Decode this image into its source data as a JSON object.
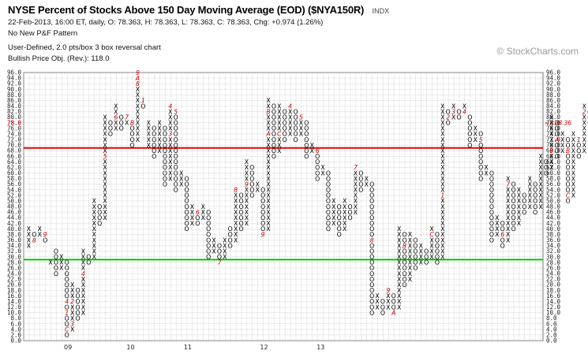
{
  "header": {
    "title": "NYSE Percent of Stocks Above 150 Day Moving Average (EOD) ($NYA150R)",
    "badge": "INDX",
    "quote": "22-Feb-2013, 16:00 ET, daily, O: 78.363, H: 78.363, L: 78.363, C: 78.363, Chg: +0.974 (1.26%)",
    "pattern": "No New P&F Pattern",
    "settings": "User-Defined, 2.0 pts/box 3 box reversal chart",
    "price_objective": "Bullish Price Obj. (Rev.): 118.0"
  },
  "watermark": "© StockCharts.com",
  "chart_data": {
    "type": "point-and-figure",
    "box_size": 2.0,
    "reversal": 3,
    "ylim": [
      0,
      96
    ],
    "grid": true,
    "last_value_label": "<<78.36",
    "last_value_left_label": "78.0",
    "x_tick_labels": [
      {
        "label": "09",
        "col": 7.7
      },
      {
        "label": "10",
        "col": 19.2
      },
      {
        "label": "11",
        "col": 29.7
      },
      {
        "label": "12",
        "col": 43.7
      },
      {
        "label": "13",
        "col": 54.1
      }
    ],
    "columns": [
      {
        "type": "X",
        "low": 34,
        "high": 40,
        "marks": {
          "30": "1"
        }
      },
      {
        "type": "O",
        "low": 36,
        "high": 38,
        "marks": {
          "36": "8"
        }
      },
      {
        "type": "X",
        "low": 38,
        "high": 40
      },
      {
        "type": "O",
        "low": 36,
        "high": 38,
        "marks": {
          "38": "9"
        }
      },
      {
        "type": "X",
        "low": 28,
        "high": 28
      },
      {
        "type": "O",
        "low": 24,
        "high": 32
      },
      {
        "type": "X",
        "low": 26,
        "high": 30
      },
      {
        "type": "O",
        "low": 2,
        "high": 28,
        "marks": {
          "14": "4",
          "10": "1",
          "4": "C"
        }
      },
      {
        "type": "X",
        "low": 4,
        "high": 20,
        "marks": {
          "14": "2",
          "6": "3"
        }
      },
      {
        "type": "O",
        "low": 8,
        "high": 18
      },
      {
        "type": "X",
        "low": 10,
        "high": 32,
        "marks": {
          "24": "4"
        }
      },
      {
        "type": "O",
        "low": 28,
        "high": 30
      },
      {
        "type": "X",
        "low": 30,
        "high": 50
      },
      {
        "type": "O",
        "low": 42,
        "high": 48
      },
      {
        "type": "X",
        "low": 44,
        "high": 80,
        "marks": {
          "66": "5"
        }
      },
      {
        "type": "O",
        "low": 74,
        "high": 78
      },
      {
        "type": "X",
        "low": 76,
        "high": 84,
        "marks": {
          "80": "6"
        }
      },
      {
        "type": "O",
        "low": 76,
        "high": 80
      },
      {
        "type": "X",
        "low": 78,
        "high": 80,
        "marks": {
          "80": "7"
        }
      },
      {
        "type": "O",
        "low": 70,
        "high": 78,
        "marks": {
          "78": "B"
        }
      },
      {
        "type": "X",
        "low": 72,
        "high": 96,
        "marks": {
          "96": "9",
          "94": "A",
          "92": "8"
        }
      },
      {
        "type": "O",
        "low": 84,
        "high": 86,
        "marks": {
          "86": "1"
        }
      },
      {
        "type": "X",
        "low": 70,
        "high": 78
      },
      {
        "type": "O",
        "low": 66,
        "high": 76
      },
      {
        "type": "X",
        "low": 68,
        "high": 78
      },
      {
        "type": "O",
        "low": 56,
        "high": 76
      },
      {
        "type": "X",
        "low": 58,
        "high": 84,
        "marks": {
          "84": "4",
          "74": "3"
        }
      },
      {
        "type": "O",
        "low": 54,
        "high": 82,
        "marks": {
          "82": "5"
        }
      },
      {
        "type": "X",
        "low": 56,
        "high": 60
      },
      {
        "type": "O",
        "low": 40,
        "high": 58
      },
      {
        "type": "X",
        "low": 42,
        "high": 48
      },
      {
        "type": "O",
        "low": 42,
        "high": 46,
        "marks": {
          "46": "6"
        }
      },
      {
        "type": "X",
        "low": 44,
        "high": 48
      },
      {
        "type": "O",
        "low": 30,
        "high": 46
      },
      {
        "type": "X",
        "low": 32,
        "high": 36
      },
      {
        "type": "O",
        "low": 28,
        "high": 34,
        "marks": {
          "28": "7"
        }
      },
      {
        "type": "X",
        "low": 30,
        "high": 36
      },
      {
        "type": "O",
        "low": 34,
        "high": 40
      },
      {
        "type": "X",
        "low": 36,
        "high": 54,
        "marks": {
          "54": "8"
        }
      },
      {
        "type": "O",
        "low": 40,
        "high": 52
      },
      {
        "type": "X",
        "low": 42,
        "high": 64,
        "marks": {
          "56": "9"
        }
      },
      {
        "type": "O",
        "low": 52,
        "high": 62
      },
      {
        "type": "X",
        "low": 54,
        "high": 56
      },
      {
        "type": "O",
        "low": 38,
        "high": 54,
        "marks": {
          "38": "9"
        }
      },
      {
        "type": "X",
        "low": 40,
        "high": 86,
        "marks": {
          "82": "B",
          "74": "A"
        }
      },
      {
        "type": "O",
        "low": 66,
        "high": 84,
        "marks": {
          "86": "1"
        }
      },
      {
        "type": "X",
        "low": 68,
        "high": 84,
        "marks": {
          "74": "C"
        }
      },
      {
        "type": "O",
        "low": 72,
        "high": 82,
        "marks": {
          "84": "3"
        }
      },
      {
        "type": "X",
        "low": 74,
        "high": 84,
        "marks": {
          "84": "4"
        }
      },
      {
        "type": "O",
        "low": 72,
        "high": 82
      },
      {
        "type": "X",
        "low": 74,
        "high": 80,
        "marks": {
          "80": "5"
        }
      },
      {
        "type": "O",
        "low": 66,
        "high": 78
      },
      {
        "type": "X",
        "low": 68,
        "high": 70
      },
      {
        "type": "O",
        "low": 58,
        "high": 68,
        "marks": {
          "68": "6"
        }
      },
      {
        "type": "X",
        "low": 60,
        "high": 62
      },
      {
        "type": "O",
        "low": 40,
        "high": 60
      },
      {
        "type": "X",
        "low": 42,
        "high": 50
      },
      {
        "type": "O",
        "low": 38,
        "high": 48
      },
      {
        "type": "X",
        "low": 40,
        "high": 50
      },
      {
        "type": "O",
        "low": 44,
        "high": 48
      },
      {
        "type": "X",
        "low": 46,
        "high": 62,
        "marks": {
          "62": "7"
        }
      },
      {
        "type": "O",
        "low": 54,
        "high": 60
      },
      {
        "type": "X",
        "low": 56,
        "high": 58
      },
      {
        "type": "O",
        "low": 10,
        "high": 56,
        "marks": {
          "36": "8"
        }
      },
      {
        "type": "X",
        "low": 12,
        "high": 16
      },
      {
        "type": "O",
        "low": 10,
        "high": 14
      },
      {
        "type": "X",
        "low": 12,
        "high": 18,
        "marks": {
          "18": "9"
        }
      },
      {
        "type": "O",
        "low": 10,
        "high": 16,
        "marks": {
          "10": "A"
        }
      },
      {
        "type": "X",
        "low": 12,
        "high": 40
      },
      {
        "type": "O",
        "low": 20,
        "high": 38,
        "marks": {
          "34": "B"
        }
      },
      {
        "type": "X",
        "low": 22,
        "high": 38
      },
      {
        "type": "O",
        "low": 26,
        "high": 36
      },
      {
        "type": "X",
        "low": 28,
        "high": 34
      },
      {
        "type": "O",
        "low": 28,
        "high": 32
      },
      {
        "type": "X",
        "low": 30,
        "high": 40,
        "marks": {
          "38": "C"
        }
      },
      {
        "type": "O",
        "low": 28,
        "high": 38
      },
      {
        "type": "X",
        "low": 30,
        "high": 84,
        "marks": {
          "52": "1"
        }
      },
      {
        "type": "O",
        "low": 78,
        "high": 82,
        "marks": {
          "80": "2"
        }
      },
      {
        "type": "X",
        "low": 80,
        "high": 84,
        "marks": {
          "82": "3"
        }
      },
      {
        "type": "O",
        "low": 80,
        "high": 82
      },
      {
        "type": "X",
        "low": 82,
        "high": 84,
        "marks": {
          "82": "4"
        }
      },
      {
        "type": "O",
        "low": 70,
        "high": 80
      },
      {
        "type": "X",
        "low": 72,
        "high": 76
      },
      {
        "type": "O",
        "low": 58,
        "high": 74,
        "marks": {
          "72": "5"
        }
      },
      {
        "type": "X",
        "low": 60,
        "high": 62
      },
      {
        "type": "O",
        "low": 36,
        "high": 60
      },
      {
        "type": "X",
        "low": 38,
        "high": 44
      },
      {
        "type": "O",
        "low": 34,
        "high": 42,
        "marks": {
          "38": "6"
        }
      },
      {
        "type": "X",
        "low": 36,
        "high": 58,
        "marks": {
          "56": "7"
        }
      },
      {
        "type": "O",
        "low": 40,
        "high": 56
      },
      {
        "type": "X",
        "low": 42,
        "high": 54
      },
      {
        "type": "O",
        "low": 46,
        "high": 52
      },
      {
        "type": "X",
        "low": 48,
        "high": 58
      },
      {
        "type": "O",
        "low": 46,
        "high": 56
      },
      {
        "type": "X",
        "low": 48,
        "high": 66
      },
      {
        "type": "O",
        "low": 60,
        "high": 64
      },
      {
        "type": "X",
        "low": 62,
        "high": 80,
        "marks": {
          "68": "9"
        }
      },
      {
        "type": "O",
        "low": 66,
        "high": 78,
        "marks": {
          "72": "A"
        }
      },
      {
        "type": "X",
        "low": 68,
        "high": 74
      },
      {
        "type": "O",
        "low": 50,
        "high": 72,
        "marks": {
          "52": "C",
          "68": "B"
        }
      },
      {
        "type": "X",
        "low": 52,
        "high": 74
      },
      {
        "type": "O",
        "low": 66,
        "high": 72,
        "marks": {
          "72": "1"
        }
      },
      {
        "type": "X",
        "low": 68,
        "high": 84,
        "marks": {
          "82": "2"
        }
      },
      {
        "type": "O",
        "low": 78,
        "high": 82
      }
    ],
    "reference_lines": [
      {
        "name": "",
        "value": 69,
        "color": "#e00000"
      },
      {
        "name": "",
        "value": 29,
        "color": "#00cc00"
      }
    ]
  },
  "colors": {
    "x_mark": "#000000",
    "o_mark": "#000000",
    "month_mark": "#cc0000",
    "grid": "#b4b4b4",
    "axis_text": "#222222",
    "price_label": "#cc0000"
  }
}
